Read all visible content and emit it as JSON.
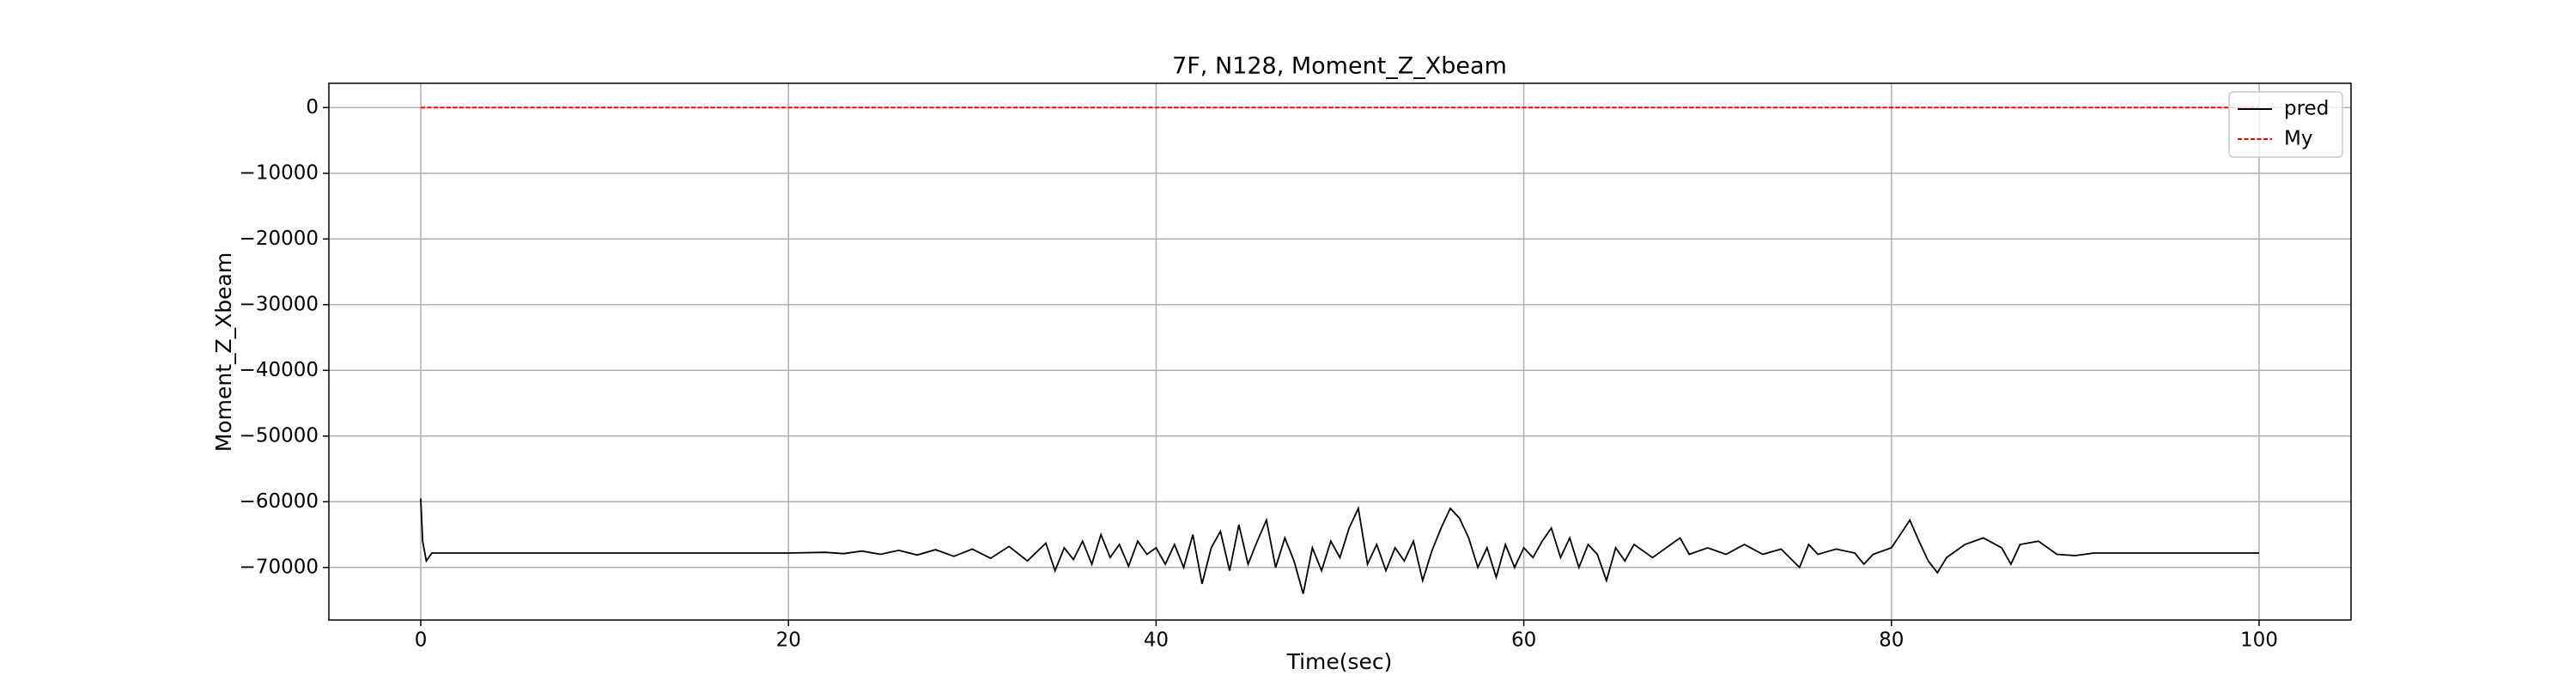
{
  "chart_data": {
    "type": "line",
    "title": "7F, N128, Moment_Z_Xbeam",
    "x_label": "Time(sec)",
    "y_label": "Moment_Z_Xbeam",
    "xlim": [
      -5,
      105
    ],
    "ylim": [
      -78000,
      3700
    ],
    "xticks": [
      0,
      20,
      40,
      60,
      80,
      100
    ],
    "yticks": [
      {
        "value": -70000,
        "label": "−70000"
      },
      {
        "value": -60000,
        "label": "−60000"
      },
      {
        "value": -50000,
        "label": "−50000"
      },
      {
        "value": -40000,
        "label": "−40000"
      },
      {
        "value": -30000,
        "label": "−30000"
      },
      {
        "value": -20000,
        "label": "−20000"
      },
      {
        "value": -10000,
        "label": "−10000"
      },
      0
    ],
    "grid": true,
    "legend": "upper right",
    "series": [
      {
        "name": "pred",
        "color": "#000000",
        "dash": "solid",
        "x": [
          0,
          0.1,
          0.3,
          0.6,
          5,
          10,
          15,
          20,
          22,
          23,
          24,
          25,
          26,
          27,
          28,
          29,
          30,
          31,
          32,
          33,
          34,
          34.5,
          35,
          35.5,
          36,
          36.5,
          37,
          37.5,
          38,
          38.5,
          39,
          39.5,
          40,
          40.5,
          41,
          41.5,
          42,
          42.5,
          43,
          43.5,
          44,
          44.5,
          45,
          45.5,
          46,
          46.5,
          47,
          47.5,
          48,
          48.5,
          49,
          49.5,
          50,
          50.5,
          51,
          51.5,
          52,
          52.5,
          53,
          53.5,
          54,
          54.5,
          55,
          55.5,
          56,
          56.5,
          57,
          57.5,
          58,
          58.5,
          59,
          59.5,
          60,
          60.5,
          61,
          61.5,
          62,
          62.5,
          63,
          63.5,
          64,
          64.5,
          65,
          65.5,
          66,
          67,
          68,
          68.5,
          69,
          70,
          71,
          72,
          73,
          74,
          75,
          75.5,
          76,
          77,
          78,
          78.5,
          79,
          80,
          81,
          81.5,
          82,
          82.5,
          83,
          84,
          85,
          86,
          86.5,
          87,
          88,
          89,
          90,
          91,
          100
        ],
        "values": [
          -59500,
          -66000,
          -69000,
          -67800,
          -67800,
          -67800,
          -67800,
          -67800,
          -67700,
          -67900,
          -67500,
          -68000,
          -67400,
          -68100,
          -67300,
          -68300,
          -67200,
          -68600,
          -66800,
          -69000,
          -66300,
          -70500,
          -67000,
          -68800,
          -66000,
          -69500,
          -65000,
          -68500,
          -66500,
          -69800,
          -66000,
          -68000,
          -67000,
          -69500,
          -66500,
          -70000,
          -65000,
          -72500,
          -67000,
          -64500,
          -70500,
          -63500,
          -69500,
          -66000,
          -62800,
          -70000,
          -65500,
          -69000,
          -74000,
          -67000,
          -70500,
          -66000,
          -68500,
          -64000,
          -61000,
          -69500,
          -66500,
          -70500,
          -67000,
          -69000,
          -66000,
          -72000,
          -67500,
          -64000,
          -61000,
          -62500,
          -65500,
          -70000,
          -67000,
          -71500,
          -66500,
          -70000,
          -67000,
          -68500,
          -66000,
          -64000,
          -68500,
          -65500,
          -70000,
          -66500,
          -68000,
          -72000,
          -67000,
          -69000,
          -66500,
          -68500,
          -66500,
          -65500,
          -68000,
          -67000,
          -68000,
          -66500,
          -68000,
          -67200,
          -70000,
          -66500,
          -68000,
          -67200,
          -67800,
          -69500,
          -68000,
          -67000,
          -62800,
          -66000,
          -69000,
          -70800,
          -68500,
          -66500,
          -65500,
          -67000,
          -69500,
          -66500,
          -66000,
          -68000,
          -68200,
          -67800,
          -67800
        ]
      },
      {
        "name": "My",
        "color": "#ff0000",
        "dash": "dashed",
        "x": [
          0,
          100
        ],
        "values": [
          0,
          0
        ]
      }
    ]
  }
}
